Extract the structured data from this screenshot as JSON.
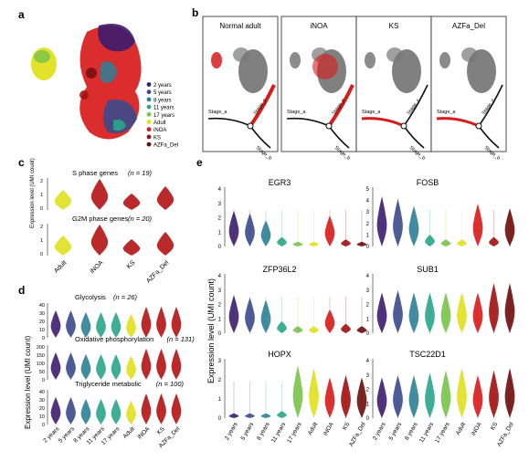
{
  "panels": {
    "a": {
      "letter": "a",
      "legend": [
        {
          "label": "2 years",
          "color": "#3d1d6e"
        },
        {
          "label": "5 years",
          "color": "#3a4a8c"
        },
        {
          "label": "8 years",
          "color": "#2e7f96"
        },
        {
          "label": "11 years",
          "color": "#2aa58a"
        },
        {
          "label": "17 years",
          "color": "#7ac24a"
        },
        {
          "label": "Adult",
          "color": "#e0e020"
        },
        {
          "label": "iNOA",
          "color": "#d81b1b"
        },
        {
          "label": "KS",
          "color": "#a01010"
        },
        {
          "label": "AZFa_Del",
          "color": "#6e0b0b"
        }
      ]
    },
    "b": {
      "letter": "b",
      "subpanels": [
        "Normal adult",
        "iNOA",
        "KS",
        "AZFa_Del"
      ],
      "stage_labels": [
        "Stage_a",
        "Stage_b",
        "Stage_c"
      ]
    },
    "c": {
      "letter": "c",
      "ylabel": "Expression level (UMI count)",
      "rows": [
        {
          "label": "S phase genes",
          "n": "(n = 19)"
        },
        {
          "label": "G2M phase genes",
          "n": "(n = 20)"
        }
      ],
      "groups": [
        "Adult",
        "iNOA",
        "KS",
        "AZFa_Del"
      ],
      "ticks": [
        "2",
        "1",
        "0"
      ]
    },
    "d": {
      "letter": "d",
      "ylabel": "Expression level (UMI count)",
      "rows": [
        {
          "label": "Glycolysis",
          "n": "(n = 26)",
          "ticks": [
            "40",
            "30",
            "20",
            "10",
            "0"
          ]
        },
        {
          "label": "Oxidative phosphorylation",
          "n": "(n = 131)",
          "ticks": [
            "200",
            "150",
            "100",
            "50",
            "0"
          ]
        },
        {
          "label": "Triglyceride metabolic",
          "n": "(n = 100)",
          "ticks": [
            "40",
            "30",
            "20",
            "10",
            "0"
          ]
        }
      ],
      "groups": [
        "2 years",
        "5 years",
        "8 years",
        "11 years",
        "17 years",
        "Adult",
        "iNOA",
        "KS",
        "AZFa_Del"
      ]
    },
    "e": {
      "letter": "e",
      "ylabel": "Expression level (UMI count)",
      "genes": [
        {
          "name": "EGR3",
          "ticks": [
            "4",
            "3",
            "2",
            "1",
            "0"
          ]
        },
        {
          "name": "FOSB",
          "ticks": [
            "5",
            "4",
            "3",
            "2",
            "1",
            "0"
          ]
        },
        {
          "name": "ZFP36L2",
          "ticks": [
            "4",
            "3",
            "2",
            "1",
            "0"
          ]
        },
        {
          "name": "SUB1",
          "ticks": [
            "4",
            "3",
            "2",
            "1",
            "0"
          ]
        },
        {
          "name": "HOPX",
          "ticks": [
            "3",
            "2",
            "1",
            "0"
          ]
        },
        {
          "name": "TSC22D1",
          "ticks": [
            "4",
            "3",
            "2",
            "1",
            "0"
          ]
        }
      ],
      "groups": [
        "2 years",
        "5 years",
        "8 years",
        "11 years",
        "17 years",
        "Adult",
        "iNOA",
        "KS",
        "AZFa_Del"
      ]
    }
  }
}
